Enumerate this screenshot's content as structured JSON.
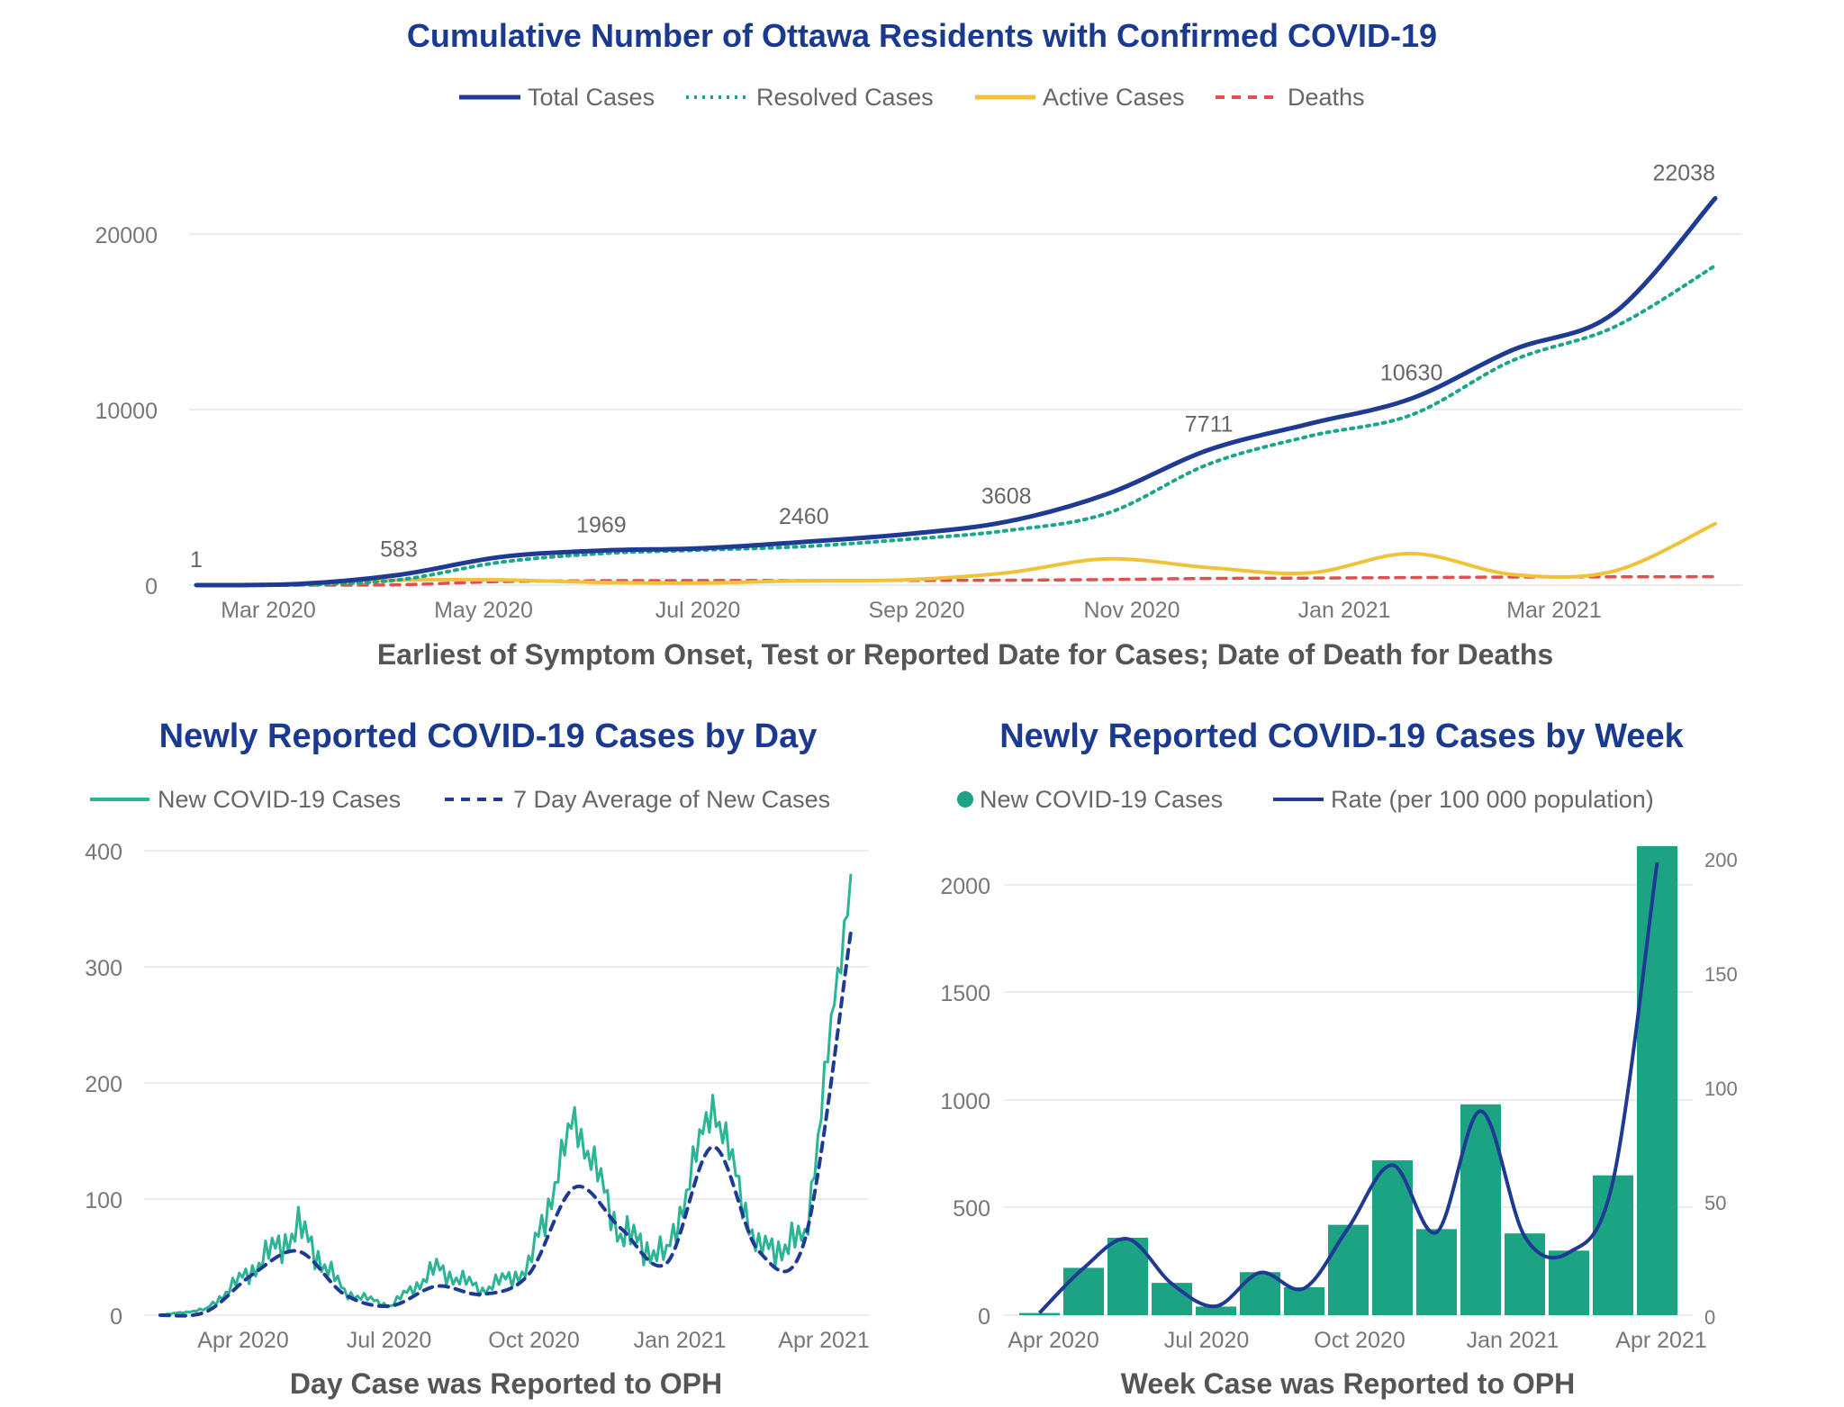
{
  "colors": {
    "title": "#1a3a8f",
    "total": "#1f3a93",
    "resolved": "#1aa68a",
    "active": "#f0c23a",
    "deaths": "#e05050",
    "daily": "#2bb596",
    "avg": "#1f3a93",
    "weekly_bar": "#1ba383",
    "rate": "#1f3a93"
  },
  "chart_data": [
    {
      "type": "line",
      "title": "Cumulative Number of Ottawa Residents with Confirmed COVID-19",
      "xlabel": "Earliest of Symptom Onset, Test or Reported Date for Cases; Date of Death for Deaths",
      "ylabel": "",
      "ylim": [
        0,
        24000
      ],
      "yticks": [
        "0",
        "10000",
        "20000"
      ],
      "xticks": [
        "Mar 2020",
        "May 2020",
        "Jul 2020",
        "Sep 2020",
        "Nov 2020",
        "Jan 2021",
        "Mar 2021"
      ],
      "legend_position": "top",
      "grid": true,
      "x": [
        "Feb 2020",
        "Mar 2020",
        "Apr 2020",
        "May 2020",
        "Jun 2020",
        "Jul 2020",
        "Aug 2020",
        "Sep 2020",
        "Oct 2020",
        "Nov 2020",
        "Dec 2020",
        "Jan 2021",
        "Feb 2021",
        "Mar 2021",
        "Apr 2021",
        "late Apr 2021"
      ],
      "series": [
        {
          "name": "Total Cases",
          "style": "solid",
          "values": [
            1,
            60,
            583,
            1600,
            1969,
            2100,
            2460,
            2900,
            3608,
            5200,
            7711,
            9200,
            10630,
            13400,
            15500,
            22038
          ]
        },
        {
          "name": "Resolved Cases",
          "style": "dotted",
          "values": [
            0,
            20,
            300,
            1300,
            1800,
            2000,
            2200,
            2600,
            3100,
            4100,
            6900,
            8500,
            9700,
            12800,
            14700,
            18200
          ]
        },
        {
          "name": "Active Cases",
          "style": "solid",
          "values": [
            1,
            40,
            280,
            300,
            150,
            120,
            250,
            300,
            700,
            1500,
            1000,
            700,
            1800,
            600,
            800,
            3500
          ]
        },
        {
          "name": "Deaths",
          "style": "dashed",
          "values": [
            0,
            0,
            20,
            200,
            250,
            260,
            265,
            270,
            280,
            320,
            380,
            400,
            430,
            460,
            470,
            480
          ]
        }
      ],
      "data_labels": [
        {
          "x": "Feb 2020",
          "value": "1"
        },
        {
          "x": "Apr 2020",
          "value": "583"
        },
        {
          "x": "Jun 2020",
          "value": "1969"
        },
        {
          "x": "Aug 2020",
          "value": "2460"
        },
        {
          "x": "Oct 2020",
          "value": "3608"
        },
        {
          "x": "Dec 2020",
          "value": "7711"
        },
        {
          "x": "Feb 2021",
          "value": "10630"
        },
        {
          "x": "late Apr 2021",
          "value": "22038"
        }
      ]
    },
    {
      "type": "line",
      "title": "Newly Reported COVID-19 Cases by Day",
      "xlabel": "Day Case was Reported to OPH",
      "ylabel": "",
      "ylim": [
        0,
        400
      ],
      "yticks": [
        "0",
        "100",
        "200",
        "300",
        "400"
      ],
      "xticks": [
        "Apr 2020",
        "Jul 2020",
        "Oct 2020",
        "Jan 2021",
        "Apr 2021"
      ],
      "legend_position": "top",
      "grid": true,
      "x": [
        "Feb 2020",
        "Mar 2020",
        "Apr 2020",
        "May 2020",
        "Jun 2020",
        "Jul 2020",
        "Aug 2020",
        "Sep 2020",
        "Oct 2020",
        "Nov 2020",
        "Dec 2020",
        "Jan 2021",
        "Feb 2021",
        "Mar 2021",
        "Apr 2021",
        "late Apr 2021"
      ],
      "series": [
        {
          "name": "New COVID-19 Cases",
          "style": "solid",
          "values": [
            0,
            5,
            40,
            75,
            20,
            8,
            40,
            22,
            40,
            170,
            70,
            50,
            185,
            55,
            65,
            380
          ]
        },
        {
          "name": "7 Day Average of New Cases",
          "style": "dashed",
          "values": [
            0,
            3,
            35,
            55,
            18,
            8,
            25,
            18,
            35,
            110,
            75,
            45,
            145,
            55,
            65,
            330
          ]
        }
      ]
    },
    {
      "type": "bar",
      "title": "Newly Reported COVID-19 Cases by Week",
      "xlabel": "Week Case was Reported to OPH",
      "ylabel": "",
      "ylim": [
        0,
        2250
      ],
      "y2lim": [
        0,
        210
      ],
      "yticks": [
        "0",
        "500",
        "1000",
        "1500",
        "2000"
      ],
      "y2ticks": [
        "0",
        "50",
        "100",
        "150",
        "200"
      ],
      "xticks": [
        "Apr 2020",
        "Jul 2020",
        "Oct 2020",
        "Jan 2021",
        "Apr 2021"
      ],
      "legend_position": "top",
      "grid": true,
      "x": [
        "Mar 2020",
        "Apr 2020",
        "May 2020",
        "Jun 2020",
        "Jul 2020",
        "Aug 2020",
        "Sep 2020",
        "Oct 2020",
        "Nov 2020",
        "Dec 2020",
        "Jan 2021",
        "Feb 2021",
        "Mar 2021",
        "Apr 2021",
        "late Apr 2021"
      ],
      "series": [
        {
          "name": "New COVID-19 Cases",
          "kind": "bar",
          "values": [
            10,
            220,
            360,
            150,
            40,
            200,
            130,
            420,
            720,
            400,
            980,
            380,
            300,
            650,
            2180
          ]
        },
        {
          "name": "Rate (per 100 000 population)",
          "kind": "line",
          "axis": "right",
          "values": [
            1,
            21,
            34,
            14,
            4,
            19,
            12,
            39,
            67,
            37,
            91,
            35,
            28,
            60,
            202
          ]
        }
      ]
    }
  ]
}
